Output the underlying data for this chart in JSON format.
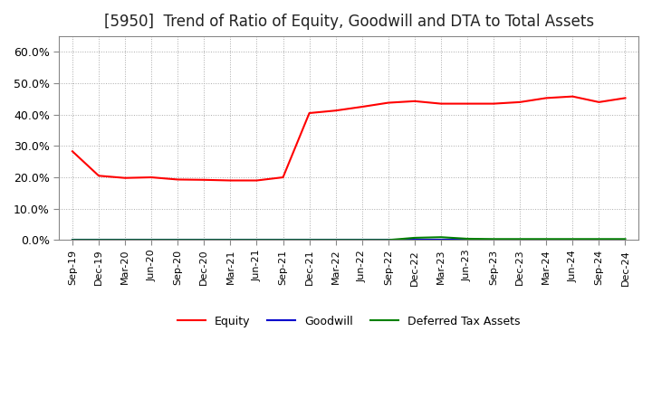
{
  "title": "[5950]  Trend of Ratio of Equity, Goodwill and DTA to Total Assets",
  "title_fontsize": 12,
  "ylim": [
    0.0,
    0.65
  ],
  "yticks": [
    0.0,
    0.1,
    0.2,
    0.3,
    0.4,
    0.5,
    0.6
  ],
  "ytick_labels": [
    "0.0%",
    "10.0%",
    "20.0%",
    "30.0%",
    "40.0%",
    "50.0%",
    "60.0%"
  ],
  "x_labels": [
    "Sep-19",
    "Dec-19",
    "Mar-20",
    "Jun-20",
    "Sep-20",
    "Dec-20",
    "Mar-21",
    "Jun-21",
    "Sep-21",
    "Dec-21",
    "Mar-22",
    "Jun-22",
    "Sep-22",
    "Dec-22",
    "Mar-23",
    "Jun-23",
    "Sep-23",
    "Dec-23",
    "Mar-24",
    "Jun-24",
    "Sep-24",
    "Dec-24"
  ],
  "equity": [
    0.283,
    0.205,
    0.198,
    0.2,
    0.193,
    0.192,
    0.19,
    0.19,
    0.2,
    0.405,
    0.413,
    0.425,
    0.438,
    0.443,
    0.435,
    0.435,
    0.435,
    0.44,
    0.453,
    0.458,
    0.44,
    0.453
  ],
  "goodwill": [
    0.0,
    0.0,
    0.0,
    0.0,
    0.0,
    0.0,
    0.0,
    0.0,
    0.0,
    0.0,
    0.0,
    0.0,
    0.0,
    0.0,
    0.0,
    0.0,
    0.0,
    0.0,
    0.0,
    0.0,
    0.0,
    0.0
  ],
  "dta": [
    0.0,
    0.0,
    0.0,
    0.0,
    0.0,
    0.0,
    0.0,
    0.0,
    0.0,
    0.0,
    0.0,
    0.0,
    0.0,
    0.007,
    0.009,
    0.004,
    0.003,
    0.003,
    0.003,
    0.003,
    0.003,
    0.003
  ],
  "equity_color": "#ff0000",
  "goodwill_color": "#0000cc",
  "dta_color": "#008000",
  "background_color": "#ffffff",
  "plot_bg_color": "#ffffff",
  "grid_color": "#aaaaaa",
  "legend_labels": [
    "Equity",
    "Goodwill",
    "Deferred Tax Assets"
  ]
}
